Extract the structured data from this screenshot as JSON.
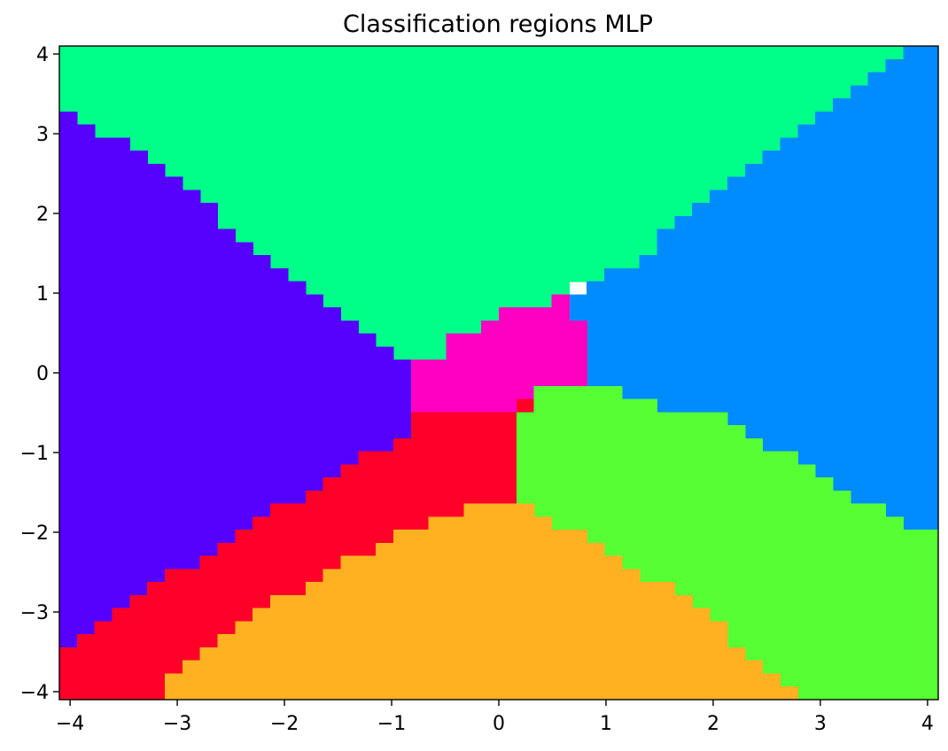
{
  "chart_data": {
    "type": "heatmap",
    "title": "Classification regions MLP",
    "xlabel": "",
    "ylabel": "",
    "xlim": [
      -4.1,
      4.1
    ],
    "ylim": [
      -4.1,
      4.1
    ],
    "xticks": [
      -4,
      -3,
      -2,
      -1,
      0,
      1,
      2,
      3,
      4
    ],
    "yticks": [
      -4,
      -3,
      -2,
      -1,
      0,
      1,
      2,
      3,
      4
    ],
    "xtick_labels": [
      "−4",
      "−3",
      "−2",
      "−1",
      "0",
      "1",
      "2",
      "3",
      "4"
    ],
    "ytick_labels": [
      "−4",
      "−3",
      "−2",
      "−1",
      "0",
      "1",
      "2",
      "3",
      "4"
    ],
    "grid": false,
    "grid_shape": [
      50,
      50
    ],
    "classes": [
      {
        "id": 0,
        "color": "#5500ff"
      },
      {
        "id": 1,
        "color": "#00ff88"
      },
      {
        "id": 2,
        "color": "#008cff"
      },
      {
        "id": 3,
        "color": "#ff00c2"
      },
      {
        "id": 4,
        "color": "#ff0028"
      },
      {
        "id": 5,
        "color": "#55ff33"
      },
      {
        "id": 6,
        "color": "#ffb121"
      }
    ],
    "regions": [
      {
        "class": 1,
        "polygon": [
          [
            -4.1,
            3.3
          ],
          [
            -3.8,
            3.1
          ],
          [
            -3.5,
            2.9
          ],
          [
            -3.2,
            2.6
          ],
          [
            -2.8,
            2.2
          ],
          [
            -2.5,
            1.8
          ],
          [
            -2.1,
            1.4
          ],
          [
            -1.8,
            1.1
          ],
          [
            -1.5,
            0.8
          ],
          [
            -1.2,
            0.5
          ],
          [
            -1.0,
            0.3
          ],
          [
            -0.8,
            0.15
          ],
          [
            -0.6,
            0.2
          ],
          [
            -0.4,
            0.5
          ],
          [
            -0.1,
            0.6
          ],
          [
            0.0,
            0.8
          ],
          [
            0.3,
            0.8
          ],
          [
            0.6,
            1.0
          ],
          [
            0.8,
            1.1
          ],
          [
            1.0,
            1.2
          ],
          [
            1.3,
            1.4
          ],
          [
            1.6,
            1.8
          ],
          [
            2.0,
            2.2
          ],
          [
            2.3,
            2.6
          ],
          [
            2.7,
            3.0
          ],
          [
            3.0,
            3.3
          ],
          [
            3.3,
            3.6
          ],
          [
            3.7,
            4.0
          ],
          [
            3.75,
            4.1
          ],
          [
            -4.1,
            4.1
          ]
        ]
      },
      {
        "class": 2,
        "polygon": [
          [
            3.75,
            4.1
          ],
          [
            4.1,
            4.1
          ],
          [
            4.1,
            -2.1
          ],
          [
            3.8,
            -1.9
          ],
          [
            3.5,
            -1.7
          ],
          [
            3.2,
            -1.5
          ],
          [
            2.9,
            -1.2
          ],
          [
            2.5,
            -0.9
          ],
          [
            2.2,
            -0.6
          ],
          [
            1.8,
            -0.5
          ],
          [
            1.5,
            -0.4
          ],
          [
            1.2,
            -0.3
          ],
          [
            1.0,
            -0.2
          ],
          [
            0.8,
            -0.1
          ],
          [
            0.8,
            0.5
          ],
          [
            0.65,
            0.8
          ],
          [
            0.65,
            1.0
          ],
          [
            0.8,
            1.1
          ],
          [
            1.0,
            1.2
          ],
          [
            1.3,
            1.4
          ],
          [
            1.6,
            1.8
          ],
          [
            2.0,
            2.2
          ],
          [
            2.3,
            2.6
          ],
          [
            2.7,
            3.0
          ],
          [
            3.0,
            3.3
          ],
          [
            3.3,
            3.6
          ],
          [
            3.7,
            4.0
          ]
        ]
      },
      {
        "class": 0,
        "polygon": [
          [
            -4.1,
            3.3
          ],
          [
            -3.8,
            3.1
          ],
          [
            -3.5,
            2.9
          ],
          [
            -3.2,
            2.6
          ],
          [
            -2.8,
            2.2
          ],
          [
            -2.5,
            1.8
          ],
          [
            -2.1,
            1.4
          ],
          [
            -1.8,
            1.1
          ],
          [
            -1.5,
            0.8
          ],
          [
            -1.2,
            0.5
          ],
          [
            -1.0,
            0.3
          ],
          [
            -0.8,
            0.15
          ],
          [
            -0.8,
            -0.3
          ],
          [
            -0.8,
            -0.8
          ],
          [
            -1.1,
            -1.0
          ],
          [
            -1.5,
            -1.2
          ],
          [
            -1.8,
            -1.5
          ],
          [
            -2.2,
            -1.8
          ],
          [
            -2.6,
            -2.2
          ],
          [
            -3.0,
            -2.5
          ],
          [
            -3.3,
            -2.8
          ],
          [
            -3.6,
            -3.0
          ],
          [
            -3.9,
            -3.3
          ],
          [
            -4.1,
            -3.5
          ]
        ]
      },
      {
        "class": 3,
        "polygon": [
          [
            -0.8,
            0.15
          ],
          [
            -0.6,
            0.2
          ],
          [
            -0.4,
            0.5
          ],
          [
            -0.1,
            0.6
          ],
          [
            0.0,
            0.8
          ],
          [
            0.3,
            0.8
          ],
          [
            0.6,
            1.0
          ],
          [
            0.65,
            1.0
          ],
          [
            0.65,
            0.8
          ],
          [
            0.8,
            0.5
          ],
          [
            0.8,
            -0.1
          ],
          [
            0.5,
            -0.2
          ],
          [
            0.3,
            -0.3
          ],
          [
            0.2,
            -0.5
          ],
          [
            -0.8,
            -0.5
          ]
        ]
      },
      {
        "class": 4,
        "polygon": [
          [
            -4.1,
            -3.5
          ],
          [
            -3.9,
            -3.3
          ],
          [
            -3.6,
            -3.0
          ],
          [
            -3.3,
            -2.8
          ],
          [
            -3.0,
            -2.5
          ],
          [
            -2.6,
            -2.2
          ],
          [
            -2.2,
            -1.8
          ],
          [
            -1.8,
            -1.5
          ],
          [
            -1.5,
            -1.2
          ],
          [
            -1.1,
            -1.0
          ],
          [
            -0.8,
            -0.8
          ],
          [
            -0.8,
            -0.5
          ],
          [
            0.2,
            -0.5
          ],
          [
            0.3,
            -0.3
          ],
          [
            0.2,
            -0.6
          ],
          [
            0.2,
            -1.6
          ],
          [
            0.0,
            -1.7
          ],
          [
            -0.3,
            -1.7
          ],
          [
            -0.6,
            -1.8
          ],
          [
            -0.9,
            -2.0
          ],
          [
            -1.2,
            -2.2
          ],
          [
            -1.6,
            -2.5
          ],
          [
            -2.0,
            -2.8
          ],
          [
            -2.4,
            -3.1
          ],
          [
            -2.7,
            -3.4
          ],
          [
            -3.0,
            -3.7
          ],
          [
            -3.2,
            -3.9
          ],
          [
            -3.1,
            -4.1
          ],
          [
            -4.1,
            -4.1
          ]
        ]
      },
      {
        "class": 5,
        "polygon": [
          [
            0.3,
            -0.3
          ],
          [
            0.5,
            -0.2
          ],
          [
            0.8,
            -0.1
          ],
          [
            1.0,
            -0.2
          ],
          [
            1.2,
            -0.3
          ],
          [
            1.5,
            -0.4
          ],
          [
            1.8,
            -0.5
          ],
          [
            2.2,
            -0.6
          ],
          [
            2.5,
            -0.9
          ],
          [
            2.9,
            -1.2
          ],
          [
            3.2,
            -1.5
          ],
          [
            3.5,
            -1.7
          ],
          [
            3.8,
            -1.9
          ],
          [
            4.1,
            -2.1
          ],
          [
            4.1,
            -4.1
          ],
          [
            2.8,
            -4.1
          ],
          [
            2.6,
            -3.8
          ],
          [
            2.3,
            -3.5
          ],
          [
            2.0,
            -3.1
          ],
          [
            1.7,
            -2.8
          ],
          [
            1.3,
            -2.5
          ],
          [
            1.0,
            -2.3
          ],
          [
            0.7,
            -2.0
          ],
          [
            0.4,
            -1.8
          ],
          [
            0.2,
            -1.6
          ],
          [
            0.2,
            -0.6
          ]
        ]
      },
      {
        "class": 6,
        "polygon": [
          [
            -3.1,
            -4.1
          ],
          [
            -3.2,
            -3.9
          ],
          [
            -3.0,
            -3.7
          ],
          [
            -2.7,
            -3.4
          ],
          [
            -2.4,
            -3.1
          ],
          [
            -2.0,
            -2.8
          ],
          [
            -1.6,
            -2.5
          ],
          [
            -1.2,
            -2.2
          ],
          [
            -0.9,
            -2.0
          ],
          [
            -0.6,
            -1.8
          ],
          [
            -0.3,
            -1.7
          ],
          [
            0.0,
            -1.7
          ],
          [
            0.2,
            -1.6
          ],
          [
            0.4,
            -1.8
          ],
          [
            0.7,
            -2.0
          ],
          [
            1.0,
            -2.3
          ],
          [
            1.3,
            -2.5
          ],
          [
            1.7,
            -2.8
          ],
          [
            2.0,
            -3.1
          ],
          [
            2.3,
            -3.5
          ],
          [
            2.6,
            -3.8
          ],
          [
            2.8,
            -4.1
          ]
        ]
      }
    ]
  }
}
